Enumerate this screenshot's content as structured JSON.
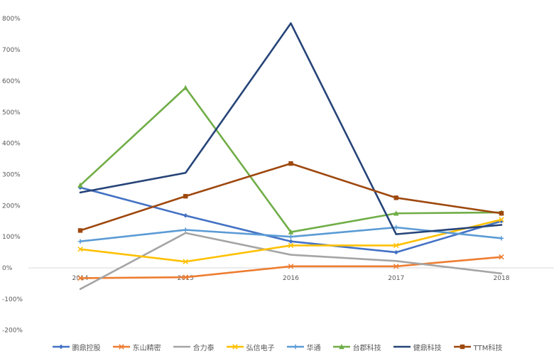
{
  "chart_data": {
    "type": "line",
    "categories": [
      "2014",
      "2015",
      "2016",
      "2017",
      "2018"
    ],
    "ylim": [
      -200,
      800
    ],
    "yticks": [
      -200,
      -100,
      0,
      100,
      200,
      300,
      400,
      500,
      600,
      700,
      800
    ],
    "ytick_labels": [
      "-200%",
      "-100%",
      "0%",
      "100%",
      "200%",
      "300%",
      "400%",
      "500%",
      "600%",
      "700%",
      "800%"
    ],
    "grid": false,
    "legend_position": "bottom",
    "series": [
      {
        "name": "鹏鼎控股",
        "color": "#4472C4",
        "marker": "diamond",
        "values": [
          258,
          168,
          85,
          50,
          150
        ]
      },
      {
        "name": "东山精密",
        "color": "#ED7D31",
        "marker": "x",
        "values": [
          -33,
          -30,
          5,
          5,
          35
        ]
      },
      {
        "name": "合力泰",
        "color": "#A5A5A5",
        "marker": "none",
        "values": [
          -68,
          112,
          42,
          22,
          -18
        ]
      },
      {
        "name": "弘信电子",
        "color": "#FFC000",
        "marker": "x",
        "values": [
          60,
          20,
          72,
          72,
          155
        ]
      },
      {
        "name": "华通",
        "color": "#5B9BD5",
        "marker": "plus",
        "values": [
          85,
          122,
          100,
          130,
          95
        ]
      },
      {
        "name": "台郡科技",
        "color": "#70AD47",
        "marker": "triangle",
        "values": [
          265,
          578,
          115,
          175,
          178
        ]
      },
      {
        "name": "健鼎科技",
        "color": "#264478",
        "marker": "none",
        "values": [
          242,
          305,
          785,
          108,
          138
        ]
      },
      {
        "name": "TTM科技",
        "color": "#9E480E",
        "marker": "square",
        "values": [
          120,
          230,
          335,
          225,
          175
        ]
      }
    ]
  }
}
